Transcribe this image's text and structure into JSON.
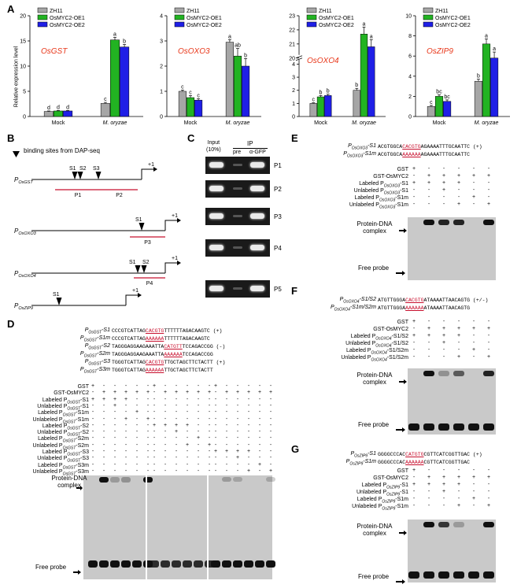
{
  "panels": {
    "a": "A",
    "b": "B",
    "c": "C",
    "d": "D",
    "e": "E",
    "f": "F",
    "g": "G"
  },
  "panel_a": {
    "ylabel": "Relative expression level",
    "legend": [
      "ZH11",
      "OsMYC2-OE1",
      "OsMYC2-OE2"
    ],
    "colors": [
      "#a6a6a6",
      "#22b322",
      "#1f1fe6"
    ],
    "groups": [
      "Mock",
      "M. oryzae"
    ]
  },
  "chart_data": [
    {
      "type": "bar",
      "title": "OsGST",
      "categories": [
        "Mock",
        "M. oryzae"
      ],
      "ylim": [
        0,
        20
      ],
      "yticks": [
        0,
        5,
        10,
        15,
        20
      ],
      "series": [
        {
          "name": "ZH11",
          "values": [
            1.0,
            2.6
          ],
          "errors": [
            0.1,
            0.2
          ],
          "letters": [
            "d",
            "c"
          ]
        },
        {
          "name": "OsMYC2-OE1",
          "values": [
            1.1,
            15.2
          ],
          "errors": [
            0.1,
            0.5
          ],
          "letters": [
            "d",
            "a"
          ]
        },
        {
          "name": "OsMYC2-OE2",
          "values": [
            1.1,
            13.8
          ],
          "errors": [
            0.1,
            0.5
          ],
          "letters": [
            "d",
            "b"
          ]
        }
      ]
    },
    {
      "type": "bar",
      "title": "OsOXO3",
      "categories": [
        "Mock",
        "M. oryzae"
      ],
      "ylim": [
        0,
        4
      ],
      "yticks": [
        0,
        1,
        2,
        3,
        4
      ],
      "series": [
        {
          "name": "ZH11",
          "values": [
            1.0,
            2.95
          ],
          "errors": [
            0.05,
            0.1
          ],
          "letters": [
            "c",
            "a"
          ]
        },
        {
          "name": "OsMYC2-OE1",
          "values": [
            0.75,
            2.4
          ],
          "errors": [
            0.08,
            0.3
          ],
          "letters": [
            "c",
            "ab"
          ]
        },
        {
          "name": "OsMYC2-OE2",
          "values": [
            0.65,
            2.0
          ],
          "errors": [
            0.06,
            0.3
          ],
          "letters": [
            "c",
            "b"
          ]
        }
      ]
    },
    {
      "type": "bar",
      "title": "OsOXO4",
      "categories": [
        "Mock",
        "M. oryzae"
      ],
      "ylim": [
        0,
        23
      ],
      "yticks": [
        0,
        1,
        2,
        3,
        4,
        20,
        21,
        22,
        23
      ],
      "axis_break": [
        4,
        20
      ],
      "series": [
        {
          "name": "ZH11",
          "values": [
            1.0,
            2.0
          ],
          "errors": [
            0.05,
            0.15
          ],
          "letters": [
            "c",
            "b"
          ]
        },
        {
          "name": "OsMYC2-OE1",
          "values": [
            1.5,
            21.7
          ],
          "errors": [
            0.1,
            0.5
          ],
          "letters": [
            "b",
            "a"
          ]
        },
        {
          "name": "OsMYC2-OE2",
          "values": [
            1.6,
            20.8
          ],
          "errors": [
            0.1,
            0.5
          ],
          "letters": [
            "b",
            "a"
          ]
        }
      ]
    },
    {
      "type": "bar",
      "title": "OsZIP9",
      "categories": [
        "Mock",
        "M. oryzae"
      ],
      "ylim": [
        0,
        10
      ],
      "yticks": [
        0,
        2,
        4,
        6,
        8,
        10
      ],
      "series": [
        {
          "name": "ZH11",
          "values": [
            1.0,
            3.5
          ],
          "errors": [
            0.1,
            0.2
          ],
          "letters": [
            "c",
            "b"
          ]
        },
        {
          "name": "OsMYC2-OE1",
          "values": [
            2.0,
            7.2
          ],
          "errors": [
            0.15,
            0.5
          ],
          "letters": [
            "bc",
            "a"
          ]
        },
        {
          "name": "OsMYC2-OE2",
          "values": [
            1.5,
            5.8
          ],
          "errors": [
            0.15,
            0.6
          ],
          "letters": [
            "bc",
            "a"
          ]
        }
      ]
    }
  ],
  "panel_b": {
    "legend": "binding sites from DAP-seq",
    "promoters": [
      {
        "name": "P",
        "sub": "OsGST",
        "sites": [
          "S1",
          "S2",
          "S3"
        ],
        "probes": [
          "P1",
          "P2"
        ],
        "tss": "+1"
      },
      {
        "name": "P",
        "sub": "OsOXO3",
        "sites": [
          "S1"
        ],
        "probes": [
          "P3"
        ],
        "tss": "+1"
      },
      {
        "name": "P",
        "sub": "OsOXO4",
        "sites": [
          "S1",
          "S2"
        ],
        "probes": [
          "P4"
        ],
        "tss": "+1"
      },
      {
        "name": "P",
        "sub": "OsZIP9",
        "sites": [
          "S1"
        ],
        "probes": [
          "P5"
        ],
        "tss": "+1"
      }
    ]
  },
  "panel_c": {
    "input": "Input",
    "input_pct": "(10%)",
    "ip": "IP",
    "pre": "pre",
    "agfp": "α-GFP",
    "rows": [
      "P1",
      "P2",
      "P3",
      "P4",
      "P5"
    ]
  },
  "panel_d": {
    "seqs": [
      {
        "name": "P",
        "sub": "OsGST",
        "suf": "-S1",
        "pre": "CCCGTCATTAG",
        "core": "CACGTG",
        "post": "TTTTTTAGACAAGTC",
        "strand": "(+)"
      },
      {
        "name": "P",
        "sub": "OsGST",
        "suf": "-S1m",
        "pre": "CCCGTCATTAG",
        "core": "AAAAAA",
        "post": "TTTTTTAGACAAGTC",
        "strand": ""
      },
      {
        "name": "P",
        "sub": "OsGST",
        "suf": "-S2",
        "pre": "TAGGGAGGAAGAAATTA",
        "core": "CATGTT",
        "post": "TCCAGACCGG",
        "strand": "(-)"
      },
      {
        "name": "P",
        "sub": "OsGST",
        "suf": "-S2m",
        "pre": "TAGGGAGGAAGAAATTA",
        "core": "AAAAAA",
        "post": "TCCAGACCGG",
        "strand": ""
      },
      {
        "name": "P",
        "sub": "OsGST",
        "suf": "-S3",
        "pre": "TGGGTCATTAG",
        "core": "CACGTG",
        "post": "TTGCTAGCTTCTACTT",
        "strand": "(+)"
      },
      {
        "name": "P",
        "sub": "OsGST",
        "suf": "-S3m",
        "pre": "TGGGTCATTAG",
        "core": "AAAAAA",
        "post": "TTGCTAGCTTCTACTT",
        "strand": ""
      }
    ],
    "rows": [
      {
        "l": "GST",
        "s": "",
        "sym": "+-------+-----+-----"
      },
      {
        "l": "GST-OsMYC2",
        "s": "",
        "sym": "-++++-++++-++++-++++"
      },
      {
        "l": "Labeled P",
        "s": "OsGST",
        "suf": "-S1",
        "sym": "+++---------"
      },
      {
        "l": "Unlabeled P",
        "s": "OsGST",
        "suf": "-S1",
        "sym": "--+---------"
      },
      {
        "l": "Labeled P",
        "s": "OsGST",
        "suf": "-S1m",
        "sym": "---+--------"
      },
      {
        "l": "Unlabeled P",
        "s": "OsGST",
        "suf": "-S1m",
        "sym": "----+-------"
      },
      {
        "l": "Labeled P",
        "s": "OsGST",
        "suf": "-S2",
        "sym": "++++"
      },
      {
        "l": "Unlabeled P",
        "s": "OsGST",
        "suf": "-S2",
        "sym": "+"
      },
      {
        "l": "Labeled P",
        "s": "OsGST",
        "suf": "-S2m",
        "sym": "+"
      },
      {
        "l": "Unlabeled P",
        "s": "OsGST",
        "suf": "-S2m",
        "sym": "+"
      },
      {
        "l": "Labeled P",
        "s": "OsGST",
        "suf": "-S3",
        "sym": "++++"
      },
      {
        "l": "Unlabeled P",
        "s": "OsGST",
        "suf": "-S3",
        "sym": "+"
      },
      {
        "l": "Labeled P",
        "s": "OsGST",
        "suf": "-S3m",
        "sym": "+"
      },
      {
        "l": "Unlabeled P",
        "s": "OsGST",
        "suf": "-S3m",
        "sym": "+"
      }
    ],
    "complex": "Protein-DNA complex",
    "free": "Free probe"
  },
  "panel_e": {
    "seqs": [
      {
        "name": "P",
        "sub": "OsOXO3",
        "suf": "-S1",
        "pre": "ACGTGGCA",
        "core": "CACGTG",
        "post": "AGAAAATTTGCAATTC",
        "strand": "(+)"
      },
      {
        "name": "P",
        "sub": "OsOXO3",
        "suf": "-S1m",
        "pre": "ACGTGGCA",
        "core": "AAAAAA",
        "post": "AGAAAATTTGCAATTC",
        "strand": ""
      }
    ],
    "rows": [
      {
        "l": "GST",
        "s": "",
        "suf": "",
        "sym": [
          "+",
          "-",
          "-",
          "-",
          "-",
          "-"
        ]
      },
      {
        "l": "GST-OsMYC2",
        "s": "",
        "suf": "",
        "sym": [
          "-",
          "+",
          "+",
          "+",
          "+",
          "+"
        ]
      },
      {
        "l": "Labeled P",
        "s": "OsOXO3",
        "suf": "-S1",
        "sym": [
          "+",
          "+",
          "+",
          "+",
          "-",
          "-"
        ]
      },
      {
        "l": "Unlabeled P",
        "s": "OsOXO3",
        "suf": "-S1",
        "sym": [
          "-",
          "-",
          "+",
          "-",
          "-",
          "-"
        ]
      },
      {
        "l": "Labeled P",
        "s": "OsOXO3",
        "suf": "-S1m",
        "sym": [
          "-",
          "-",
          "-",
          "-",
          "+",
          "-"
        ]
      },
      {
        "l": "Unlabeled P",
        "s": "OsOXO3",
        "suf": "-S1m",
        "sym": [
          "-",
          "-",
          "-",
          "+",
          "-",
          "+"
        ]
      }
    ],
    "complex": "Protein-DNA complex",
    "free": "Free probe"
  },
  "panel_f": {
    "seqs": [
      {
        "name": "P",
        "sub": "OsOXO4",
        "suf": "-S1/S2",
        "pre": "ATGTTGGGA",
        "core": "CACGTG",
        "post": "ATAAAATTAACAGTG",
        "strand": "(+/-)"
      },
      {
        "name": "P",
        "sub": "OsOXO4",
        "suf": "-S1m/S2m",
        "pre": "ATGTTGGGA",
        "core": "AAAAAA",
        "post": "ATAAAATTAACAGTG",
        "strand": ""
      }
    ],
    "rows": [
      {
        "l": "GST",
        "s": "",
        "suf": "",
        "sym": [
          "+",
          "-",
          "-",
          "-",
          "-",
          "-"
        ]
      },
      {
        "l": "GST-OsMYC2",
        "s": "",
        "suf": "",
        "sym": [
          "-",
          "+",
          "+",
          "+",
          "+",
          "+"
        ]
      },
      {
        "l": "Labeled P",
        "s": "OsOXO4",
        "suf": "-S1/S2",
        "sym": [
          "+",
          "+",
          "+",
          "+",
          "-",
          "-"
        ]
      },
      {
        "l": "Unlabeled P",
        "s": "OsOXO4",
        "suf": "-S1/S2",
        "sym": [
          "-",
          "-",
          "+",
          "-",
          "-",
          "-"
        ]
      },
      {
        "l": "Labeled P",
        "s": "OsOXO4",
        "suf": "-S1/S2m",
        "sym": [
          "-",
          "-",
          "-",
          "-",
          "+",
          "-"
        ]
      },
      {
        "l": "Unlabeled P",
        "s": "OsOXO4",
        "suf": "-S1/S2m",
        "sym": [
          "-",
          "-",
          "-",
          "+",
          "-",
          "+"
        ]
      }
    ],
    "complex": "Protein-DNA complex",
    "free": "Free probe"
  },
  "panel_g": {
    "seqs": [
      {
        "name": "P",
        "sub": "OsZIP9",
        "suf": "-S1",
        "pre": "GGGGCCCAC",
        "core": "CATGTG",
        "post": "CGTTCATCGGTTGAC",
        "strand": "(+)"
      },
      {
        "name": "P",
        "sub": "OsZIP9",
        "suf": "-S1m",
        "pre": "GGGGCCCAC",
        "core": "AAAAAA",
        "post": "CGTTCATCGGTTGAC",
        "strand": ""
      }
    ],
    "rows": [
      {
        "l": "GST",
        "s": "",
        "suf": "",
        "sym": [
          "+",
          "-",
          "-",
          "-",
          "-",
          "-"
        ]
      },
      {
        "l": "GST-OsMYC2",
        "s": "",
        "suf": "",
        "sym": [
          "-",
          "+",
          "+",
          "+",
          "+",
          "+"
        ]
      },
      {
        "l": "Labeled P",
        "s": "OsZIP9",
        "suf": "-S1",
        "sym": [
          "+",
          "+",
          "+",
          "+",
          "-",
          "-"
        ]
      },
      {
        "l": "Unlabeled P",
        "s": "OsZIP9",
        "suf": "-S1",
        "sym": [
          "-",
          "-",
          "+",
          "-",
          "-",
          "-"
        ]
      },
      {
        "l": "Labeled P",
        "s": "OsZIP9",
        "suf": "-S1m",
        "sym": [
          "-",
          "-",
          "-",
          "-",
          "+",
          "-"
        ]
      },
      {
        "l": "Unlabeled P",
        "s": "OsZIP9",
        "suf": "-S1m",
        "sym": [
          "-",
          "-",
          "-",
          "+",
          "-",
          "+"
        ]
      }
    ],
    "complex": "Protein-DNA complex",
    "free": "Free probe"
  }
}
